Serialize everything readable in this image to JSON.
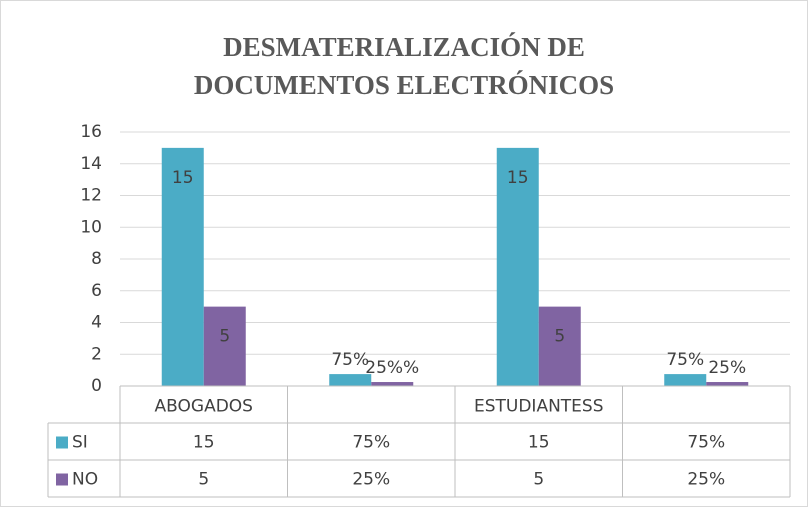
{
  "chart_data": {
    "type": "bar",
    "title": "DESMATERIALIZACIÓN DE DOCUMENTOS ELECTRÓNICOS",
    "categories": [
      "ABOGADOS",
      null,
      "ESTUDIANTESS",
      null
    ],
    "series": [
      {
        "name": "SI",
        "color": "#4bacc6",
        "values": [
          15,
          0.75,
          15,
          0.75
        ],
        "value_labels": [
          "15",
          "75%",
          "15",
          "75%"
        ],
        "table_labels": [
          "15",
          "75%",
          "15",
          "75%"
        ]
      },
      {
        "name": "NO",
        "color": "#8064a2",
        "values": [
          5,
          0.25,
          5,
          0.25
        ],
        "value_labels": [
          "5",
          "25%%",
          "5",
          "25%"
        ],
        "table_labels": [
          "5",
          "25%",
          "5",
          "25%"
        ]
      }
    ],
    "ylim": [
      0,
      16
    ],
    "yticks": [
      0,
      2,
      4,
      6,
      8,
      10,
      12,
      14,
      16
    ],
    "grid": true,
    "data_table": true
  }
}
